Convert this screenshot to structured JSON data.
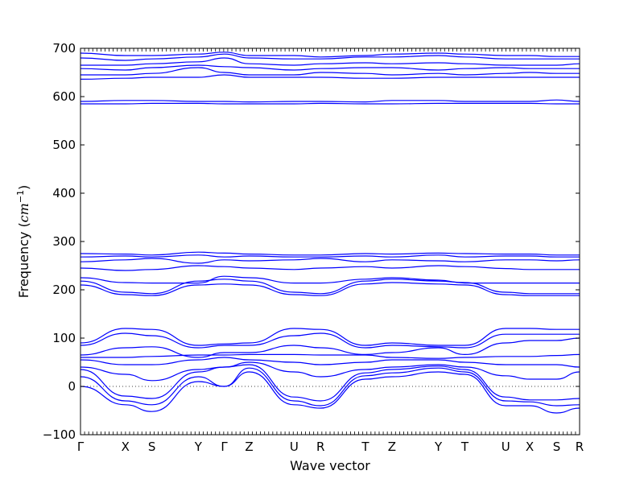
{
  "chart_data": {
    "type": "line",
    "xlabel": "Wave vector",
    "ylabel": "Frequency (cm⁻¹)",
    "ylabel_text": "Frequency (",
    "ylabel_unit": "cm",
    "ylabel_exp": "−1",
    "ylabel_close": ")",
    "ylim": [
      -100,
      700
    ],
    "yticks": [
      -100,
      0,
      100,
      200,
      300,
      400,
      500,
      600,
      700
    ],
    "xlim": [
      0,
      1
    ],
    "high_symmetry_points": [
      {
        "label": "Γ",
        "x": 0.0
      },
      {
        "label": "X",
        "x": 0.09
      },
      {
        "label": "S",
        "x": 0.143
      },
      {
        "label": "Y",
        "x": 0.236
      },
      {
        "label": "Γ",
        "x": 0.288
      },
      {
        "label": "Z",
        "x": 0.338
      },
      {
        "label": "U",
        "x": 0.428
      },
      {
        "label": "R",
        "x": 0.481
      },
      {
        "label": "T",
        "x": 0.571
      },
      {
        "label": "Z",
        "x": 0.624
      },
      {
        "label": "Y",
        "x": 0.717
      },
      {
        "label": "T",
        "x": 0.77
      },
      {
        "label": "U",
        "x": 0.852
      },
      {
        "label": "X",
        "x": 0.9
      },
      {
        "label": "S",
        "x": 0.954
      },
      {
        "label": "R",
        "x": 1.0
      }
    ],
    "minor_tick_count": 122,
    "zero_line": true,
    "line_color": "#0000ff",
    "bands": [
      {
        "x": [
          0,
          0.09,
          0.143,
          0.236,
          0.288,
          0.338,
          0.428,
          0.481,
          0.571,
          0.624,
          0.717,
          0.77,
          0.852,
          0.9,
          0.954,
          1.0
        ],
        "values": [
          0,
          -38,
          -52,
          10,
          0,
          30,
          -38,
          -45,
          15,
          20,
          30,
          25,
          -40,
          -40,
          -55,
          -45
        ]
      },
      {
        "x": [
          0,
          0.09,
          0.143,
          0.236,
          0.288,
          0.338,
          0.428,
          0.481,
          0.571,
          0.624,
          0.717,
          0.77,
          0.852,
          0.9,
          0.954,
          1.0
        ],
        "values": [
          20,
          -30,
          -38,
          20,
          0,
          38,
          -30,
          -40,
          22,
          28,
          38,
          30,
          -30,
          -32,
          -40,
          -38
        ]
      },
      {
        "x": [
          0,
          0.09,
          0.143,
          0.236,
          0.288,
          0.338,
          0.428,
          0.481,
          0.571,
          0.624,
          0.717,
          0.77,
          0.852,
          0.9,
          0.954,
          1.0
        ],
        "values": [
          35,
          -20,
          -25,
          30,
          40,
          45,
          -22,
          -30,
          28,
          35,
          42,
          35,
          -22,
          -28,
          -28,
          -25
        ]
      },
      {
        "x": [
          0,
          0.09,
          0.143,
          0.236,
          0.288,
          0.338,
          0.428,
          0.481,
          0.571,
          0.624,
          0.717,
          0.77,
          0.852,
          0.9,
          0.954,
          1.0
        ],
        "values": [
          40,
          25,
          12,
          35,
          40,
          50,
          30,
          20,
          35,
          40,
          45,
          40,
          22,
          15,
          15,
          30
        ]
      },
      {
        "x": [
          0,
          0.09,
          0.143,
          0.236,
          0.288,
          0.338,
          0.428,
          0.481,
          0.571,
          0.624,
          0.717,
          0.77,
          0.852,
          0.9,
          0.954,
          1.0
        ],
        "values": [
          55,
          45,
          45,
          55,
          60,
          55,
          50,
          45,
          50,
          55,
          55,
          50,
          45,
          45,
          45,
          40
        ]
      },
      {
        "x": [
          0,
          0.09,
          0.143,
          0.236,
          0.288,
          0.338,
          0.428,
          0.481,
          0.571,
          0.624,
          0.717,
          0.77,
          0.852,
          0.9,
          0.954,
          1.0
        ],
        "values": [
          60,
          60,
          62,
          65,
          65,
          66,
          66,
          65,
          65,
          60,
          58,
          60,
          62,
          62,
          64,
          66
        ]
      },
      {
        "x": [
          0,
          0.09,
          0.143,
          0.236,
          0.288,
          0.338,
          0.428,
          0.481,
          0.571,
          0.624,
          0.717,
          0.77,
          0.852,
          0.9,
          0.954,
          1.0
        ],
        "values": [
          65,
          80,
          82,
          60,
          70,
          70,
          85,
          80,
          66,
          70,
          80,
          66,
          90,
          95,
          95,
          100
        ]
      },
      {
        "x": [
          0,
          0.09,
          0.143,
          0.236,
          0.288,
          0.338,
          0.428,
          0.481,
          0.571,
          0.624,
          0.717,
          0.77,
          0.852,
          0.9,
          0.954,
          1.0
        ],
        "values": [
          85,
          110,
          105,
          80,
          85,
          85,
          105,
          110,
          80,
          85,
          82,
          80,
          108,
          108,
          108,
          108
        ]
      },
      {
        "x": [
          0,
          0.09,
          0.143,
          0.236,
          0.288,
          0.338,
          0.428,
          0.481,
          0.571,
          0.624,
          0.717,
          0.77,
          0.852,
          0.9,
          0.954,
          1.0
        ],
        "values": [
          90,
          120,
          118,
          85,
          88,
          90,
          120,
          118,
          85,
          90,
          85,
          85,
          120,
          120,
          118,
          118
        ]
      },
      {
        "x": [
          0,
          0.09,
          0.143,
          0.236,
          0.288,
          0.338,
          0.428,
          0.481,
          0.571,
          0.624,
          0.717,
          0.77,
          0.852,
          0.9,
          0.954,
          1.0
        ],
        "values": [
          210,
          190,
          188,
          210,
          212,
          210,
          190,
          188,
          212,
          215,
          212,
          210,
          190,
          188,
          188,
          188
        ]
      },
      {
        "x": [
          0,
          0.09,
          0.143,
          0.236,
          0.288,
          0.338,
          0.428,
          0.481,
          0.571,
          0.624,
          0.717,
          0.77,
          0.852,
          0.9,
          0.954,
          1.0
        ],
        "values": [
          218,
          195,
          192,
          218,
          222,
          218,
          195,
          192,
          218,
          222,
          218,
          215,
          195,
          192,
          192,
          192
        ]
      },
      {
        "x": [
          0,
          0.09,
          0.143,
          0.236,
          0.288,
          0.338,
          0.428,
          0.481,
          0.571,
          0.624,
          0.717,
          0.77,
          0.852,
          0.9,
          0.954,
          1.0
        ],
        "values": [
          225,
          215,
          214,
          214,
          228,
          225,
          214,
          214,
          222,
          225,
          220,
          214,
          214,
          214,
          214,
          214
        ]
      },
      {
        "x": [
          0,
          0.09,
          0.143,
          0.236,
          0.288,
          0.338,
          0.428,
          0.481,
          0.571,
          0.624,
          0.717,
          0.77,
          0.852,
          0.9,
          0.954,
          1.0
        ],
        "values": [
          245,
          240,
          242,
          250,
          248,
          245,
          242,
          245,
          248,
          245,
          250,
          248,
          244,
          242,
          242,
          242
        ]
      },
      {
        "x": [
          0,
          0.09,
          0.143,
          0.236,
          0.288,
          0.338,
          0.428,
          0.481,
          0.571,
          0.624,
          0.717,
          0.77,
          0.852,
          0.9,
          0.954,
          1.0
        ],
        "values": [
          258,
          262,
          265,
          255,
          262,
          260,
          262,
          265,
          258,
          262,
          260,
          258,
          262,
          262,
          260,
          262
        ]
      },
      {
        "x": [
          0,
          0.09,
          0.143,
          0.236,
          0.288,
          0.338,
          0.428,
          0.481,
          0.571,
          0.624,
          0.717,
          0.77,
          0.852,
          0.9,
          0.954,
          1.0
        ],
        "values": [
          268,
          270,
          268,
          272,
          268,
          270,
          268,
          268,
          270,
          268,
          272,
          268,
          270,
          270,
          268,
          268
        ]
      },
      {
        "x": [
          0,
          0.09,
          0.143,
          0.236,
          0.288,
          0.338,
          0.428,
          0.481,
          0.571,
          0.624,
          0.717,
          0.77,
          0.852,
          0.9,
          0.954,
          1.0
        ],
        "values": [
          275,
          274,
          272,
          278,
          276,
          274,
          272,
          272,
          275,
          274,
          276,
          275,
          274,
          274,
          272,
          272
        ]
      },
      {
        "x": [
          0,
          0.09,
          0.143,
          0.236,
          0.288,
          0.338,
          0.428,
          0.481,
          0.571,
          0.624,
          0.717,
          0.77,
          0.852,
          0.9,
          0.954,
          1.0
        ],
        "values": [
          585,
          585,
          586,
          586,
          585,
          585,
          585,
          586,
          585,
          585,
          586,
          586,
          586,
          586,
          585,
          585
        ]
      },
      {
        "x": [
          0,
          0.09,
          0.143,
          0.236,
          0.288,
          0.338,
          0.428,
          0.481,
          0.571,
          0.624,
          0.717,
          0.77,
          0.852,
          0.9,
          0.954,
          1.0
        ],
        "values": [
          590,
          592,
          592,
          590,
          590,
          589,
          590,
          590,
          589,
          592,
          592,
          590,
          590,
          590,
          593,
          590
        ]
      },
      {
        "x": [
          0,
          0.09,
          0.143,
          0.236,
          0.288,
          0.338,
          0.428,
          0.481,
          0.571,
          0.624,
          0.717,
          0.77,
          0.852,
          0.9,
          0.954,
          1.0
        ],
        "values": [
          636,
          638,
          640,
          640,
          645,
          640,
          640,
          640,
          638,
          638,
          640,
          640,
          640,
          640,
          640,
          640
        ]
      },
      {
        "x": [
          0,
          0.09,
          0.143,
          0.236,
          0.288,
          0.338,
          0.428,
          0.481,
          0.571,
          0.624,
          0.717,
          0.77,
          0.852,
          0.9,
          0.954,
          1.0
        ],
        "values": [
          645,
          645,
          648,
          660,
          650,
          645,
          645,
          650,
          648,
          645,
          648,
          645,
          648,
          650,
          648,
          648
        ]
      },
      {
        "x": [
          0,
          0.09,
          0.143,
          0.236,
          0.288,
          0.338,
          0.428,
          0.481,
          0.571,
          0.624,
          0.717,
          0.77,
          0.852,
          0.9,
          0.954,
          1.0
        ],
        "values": [
          658,
          655,
          660,
          665,
          662,
          660,
          655,
          658,
          660,
          660,
          655,
          658,
          660,
          658,
          658,
          658
        ]
      },
      {
        "x": [
          0,
          0.09,
          0.143,
          0.236,
          0.288,
          0.338,
          0.428,
          0.481,
          0.571,
          0.624,
          0.717,
          0.77,
          0.852,
          0.9,
          0.954,
          1.0
        ],
        "values": [
          665,
          665,
          668,
          672,
          680,
          668,
          665,
          668,
          670,
          668,
          670,
          668,
          665,
          665,
          665,
          668
        ]
      },
      {
        "x": [
          0,
          0.09,
          0.143,
          0.236,
          0.288,
          0.338,
          0.428,
          0.481,
          0.571,
          0.624,
          0.717,
          0.77,
          0.852,
          0.9,
          0.954,
          1.0
        ],
        "values": [
          680,
          675,
          678,
          682,
          688,
          680,
          678,
          678,
          682,
          682,
          685,
          682,
          678,
          678,
          678,
          678
        ]
      },
      {
        "x": [
          0,
          0.09,
          0.143,
          0.236,
          0.288,
          0.338,
          0.428,
          0.481,
          0.571,
          0.624,
          0.717,
          0.77,
          0.852,
          0.9,
          0.954,
          1.0
        ],
        "values": [
          690,
          685,
          685,
          688,
          692,
          685,
          685,
          682,
          685,
          688,
          690,
          688,
          685,
          685,
          683,
          683
        ]
      }
    ]
  }
}
